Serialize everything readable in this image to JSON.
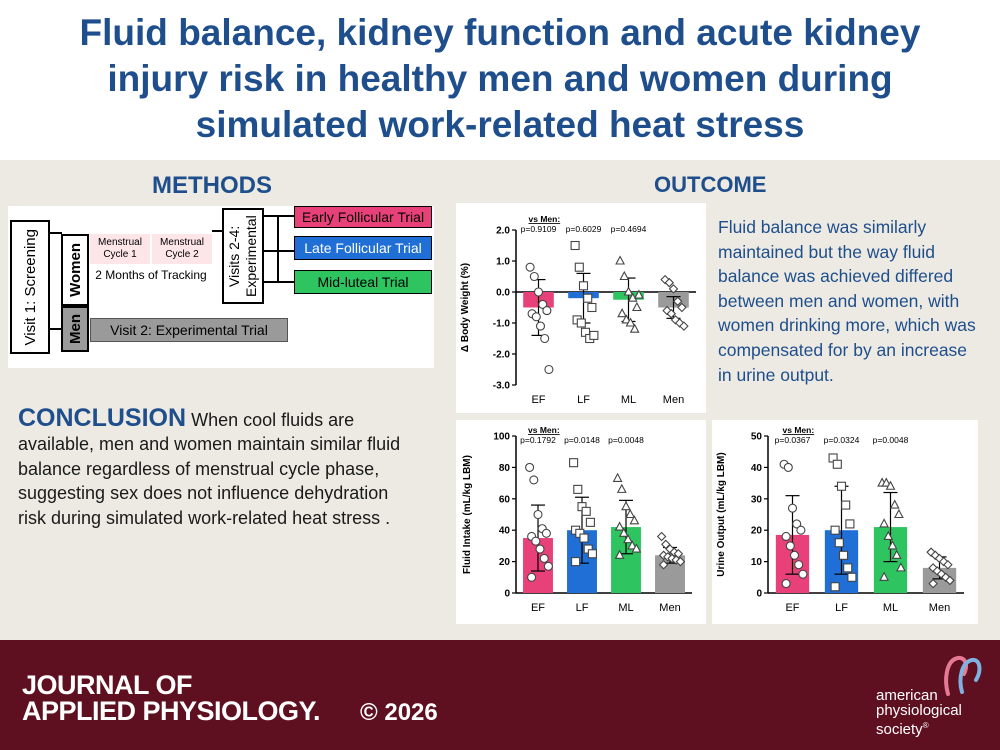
{
  "title": "Fluid balance, kidney function and acute kidney injury risk in healthy men and women during simulated work-related heat stress",
  "methods": {
    "heading": "METHODS",
    "visit1": "Visit 1: Screening",
    "women": "Women",
    "men": "Men",
    "cycle1": "Menstrual Cycle 1",
    "cycle2": "Menstrual Cycle 2",
    "tracking": "2 Months of Tracking",
    "visits24": "Visits 2-4: Experimental",
    "trial_early": "Early Follicular Trial",
    "trial_late": "Late Follicular Trial",
    "trial_mid": "Mid-luteal Trial",
    "visit2": "Visit 2: Experimental Trial",
    "colors": {
      "early": "#e8417a",
      "late": "#1f6fd6",
      "mid": "#2ec561",
      "men": "#9a9a9a",
      "cycle": "#fde5e8"
    }
  },
  "outcome": {
    "heading": "OUTCOME",
    "text": "Fluid balance was similarly maintained but the way fluid balance was achieved differed between men and women, with women drinking more, which was compensated for by an increase in urine output."
  },
  "conclusion": {
    "heading": "CONCLUSION",
    "text": "When cool fluids are available, men and women maintain similar fluid balance regardless of menstrual cycle phase, suggesting sex does not influence dehydration risk during simulated work-related heat stress ."
  },
  "chart_data": [
    {
      "type": "bar",
      "categories": [
        "EF",
        "LF",
        "ML",
        "Men"
      ],
      "values": [
        -0.5,
        -0.2,
        -0.25,
        -0.5
      ],
      "errors": [
        0.9,
        0.8,
        0.7,
        0.35
      ],
      "points": [
        [
          0.8,
          0.5,
          0.0,
          -0.4,
          -0.6,
          -0.7,
          -0.8,
          -1.1,
          -1.5,
          -2.5
        ],
        [
          1.5,
          0.8,
          0.2,
          -0.2,
          -0.5,
          -0.9,
          -1.0,
          -1.3,
          -1.5,
          -1.4
        ],
        [
          1.0,
          0.5,
          0.0,
          -0.2,
          -0.5,
          -0.7,
          -0.9,
          -1.0,
          -1.2,
          -0.1
        ],
        [
          0.4,
          0.3,
          0.1,
          -0.3,
          -0.5,
          -0.6,
          -0.7,
          -0.9,
          -1.0,
          -1.1
        ]
      ],
      "ylabel": "Δ Body Weight (%)",
      "ylim": [
        -3.0,
        2.0
      ],
      "yticks": [
        "2.0",
        "1.0",
        "0.0",
        "-1.0",
        "-2.0",
        "-3.0"
      ],
      "comparison_label": "vs Men:",
      "pvalues": [
        "p=0.9109",
        "p=0.6029",
        "p=0.4694"
      ]
    },
    {
      "type": "bar",
      "categories": [
        "EF",
        "LF",
        "ML",
        "Men"
      ],
      "values": [
        35,
        40,
        42,
        24
      ],
      "errors": [
        21,
        21,
        17,
        5
      ],
      "points": [
        [
          80,
          72,
          50,
          41,
          38,
          36,
          33,
          28,
          22,
          17,
          10
        ],
        [
          83,
          66,
          55,
          52,
          45,
          40,
          38,
          35,
          28,
          25,
          20
        ],
        [
          73,
          66,
          55,
          50,
          46,
          42,
          38,
          34,
          30,
          28,
          24
        ],
        [
          36,
          31,
          28,
          26,
          25,
          24,
          23,
          22,
          21,
          20,
          18
        ]
      ],
      "ylabel": "Fluid Intake (mL/kg LBM)",
      "ylim": [
        0,
        100
      ],
      "yticks": [
        "100",
        "80",
        "60",
        "40",
        "20",
        "0"
      ],
      "comparison_label": "vs Men:",
      "pvalues": [
        "p=0.1792",
        "p=0.0148",
        "p=0.0048"
      ]
    },
    {
      "type": "bar",
      "categories": [
        "EF",
        "LF",
        "ML",
        "Men"
      ],
      "values": [
        18.5,
        20,
        21,
        8
      ],
      "errors": [
        12.5,
        14,
        11,
        3.5
      ],
      "points": [
        [
          41,
          40,
          27,
          22,
          20,
          18,
          15,
          12,
          9,
          6,
          3
        ],
        [
          43,
          41,
          34,
          28,
          22,
          20,
          16,
          12,
          8,
          5,
          2
        ],
        [
          35,
          35,
          34,
          28,
          25,
          22,
          18,
          15,
          12,
          8,
          5
        ],
        [
          13,
          12,
          11,
          10,
          9,
          8,
          7,
          6,
          5,
          4,
          3
        ]
      ],
      "ylabel": "Urine Output (mL/kg LBM)",
      "ylim": [
        0,
        50
      ],
      "yticks": [
        "50",
        "40",
        "30",
        "20",
        "10",
        "0"
      ],
      "comparison_label": "vs Men:",
      "pvalues": [
        "p=0.0367",
        "p=0.0324",
        "p=0.0048"
      ]
    }
  ],
  "footer": {
    "journal_line1": "JOURNAL OF",
    "journal_line2": "APPLIED PHYSIOLOGY.",
    "copyright": "© 2026",
    "society_line1": "american",
    "society_line2": "physiological",
    "society_line3": "society",
    "society_mark": "®"
  }
}
